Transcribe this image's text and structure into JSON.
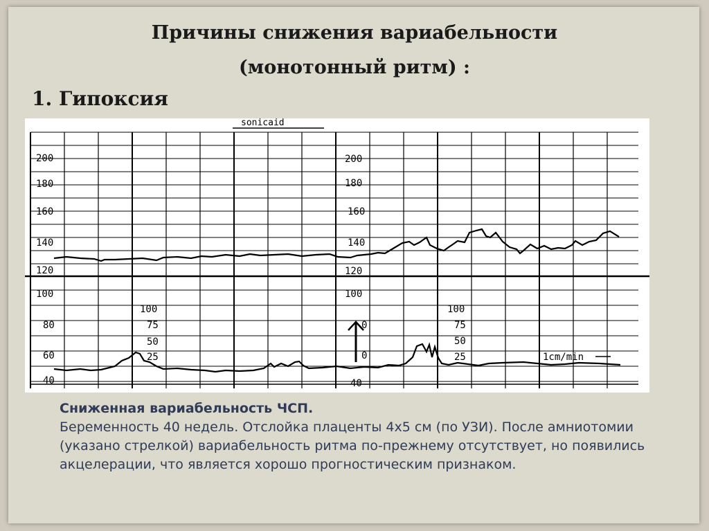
{
  "slide": {
    "title_line1": "Причины снижения вариабельности",
    "title_line2": "(монотонный ритм) :",
    "subtitle": "1. Гипоксия"
  },
  "trace": {
    "brand": "sonicaid",
    "fhr_labels_left": [
      "200",
      "180",
      "160",
      "140",
      "120"
    ],
    "fhr_labels_mid": [
      "200",
      "180",
      "160",
      "140",
      "120"
    ],
    "toco_labels_left": [
      "100",
      "80",
      "60",
      "40"
    ],
    "toco_labels_mid": [
      "100",
      "0",
      "0",
      "40"
    ],
    "toco_scale_a": [
      "100",
      "75",
      "50",
      "25"
    ],
    "toco_scale_b": [
      "100",
      "75",
      "50",
      "25"
    ],
    "paper_speed": "1cm/min",
    "colors": {
      "grid": "#000000",
      "paper": "#ffffff",
      "trace": "#000000"
    }
  },
  "caption": {
    "heading": "Сниженная вариабельность ЧСП.",
    "text": "Беременность 40 недель. Отслойка плаценты 4х5 см (по УЗИ). После амниотомии (указано стрелкой) вариабельность ритма по-прежнему отсутствует, но появились акцелерации, что является хорошо прогностическим признаком."
  }
}
